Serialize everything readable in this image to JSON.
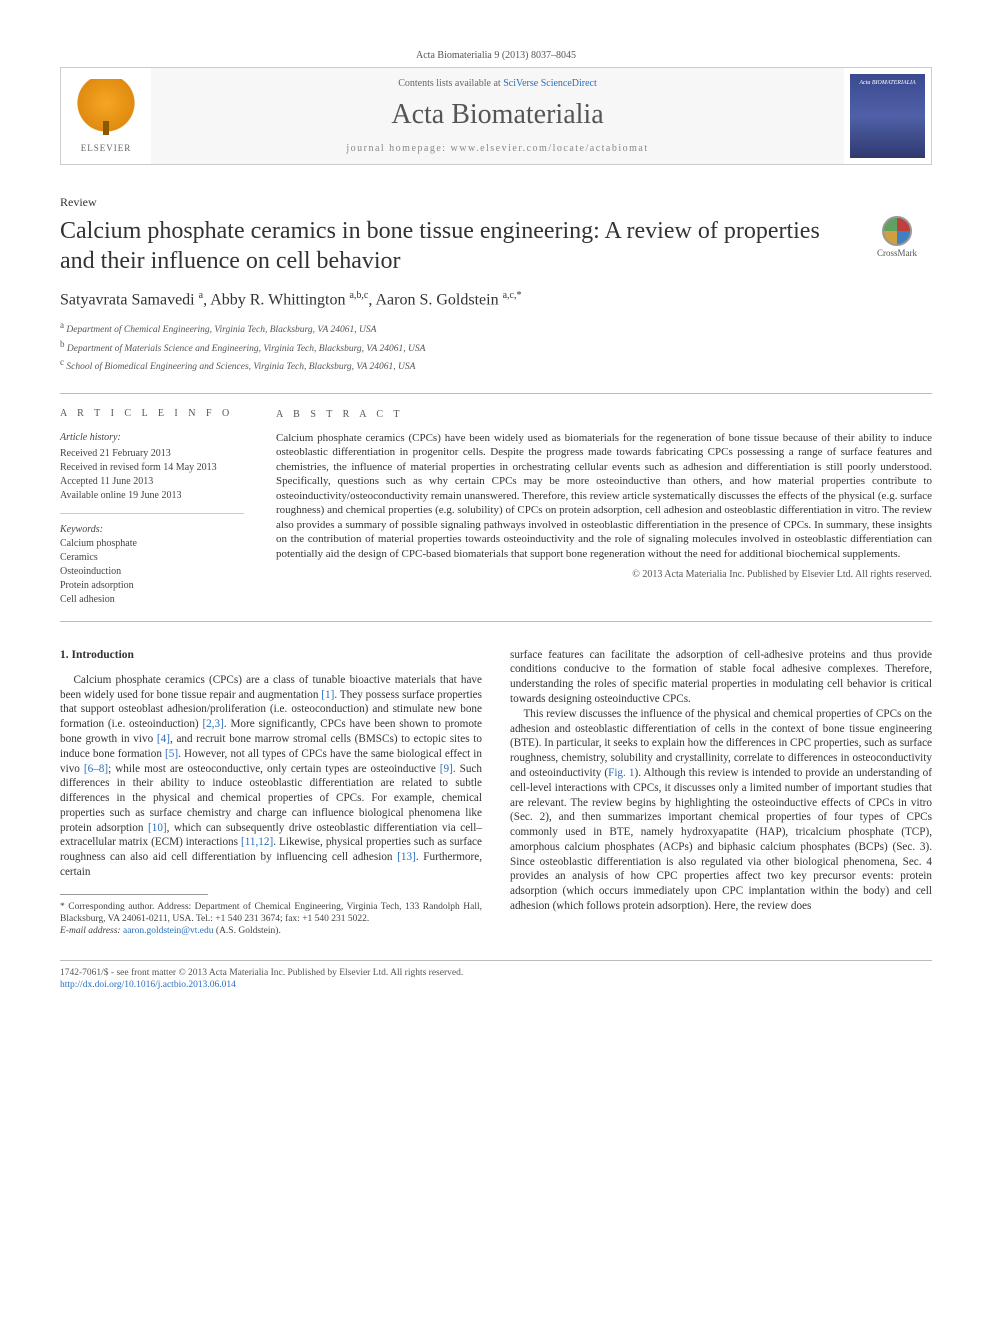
{
  "citation": "Acta Biomaterialia 9 (2013) 8037–8045",
  "header": {
    "contents_prefix": "Contents lists available at ",
    "contents_link": "SciVerse ScienceDirect",
    "journal": "Acta Biomaterialia",
    "homepage_label": "journal homepage: www.elsevier.com/locate/actabiomat",
    "publisher": "ELSEVIER",
    "cover_title": "Acta BIOMATERIALIA"
  },
  "article": {
    "type": "Review",
    "title": "Calcium phosphate ceramics in bone tissue engineering: A review of properties and their influence on cell behavior",
    "crossmark_label": "CrossMark",
    "authors_html": "Satyavrata Samavedi <sup>a</sup>, Abby R. Whittington <sup>a,b,c</sup>, Aaron S. Goldstein <sup>a,c,*</sup>",
    "affiliations": [
      "a Department of Chemical Engineering, Virginia Tech, Blacksburg, VA 24061, USA",
      "b Department of Materials Science and Engineering, Virginia Tech, Blacksburg, VA 24061, USA",
      "c School of Biomedical Engineering and Sciences, Virginia Tech, Blacksburg, VA 24061, USA"
    ]
  },
  "info": {
    "heading": "A R T I C L E   I N F O",
    "history_label": "Article history:",
    "history": [
      "Received 21 February 2013",
      "Received in revised form 14 May 2013",
      "Accepted 11 June 2013",
      "Available online 19 June 2013"
    ],
    "keywords_label": "Keywords:",
    "keywords": [
      "Calcium phosphate",
      "Ceramics",
      "Osteoinduction",
      "Protein adsorption",
      "Cell adhesion"
    ]
  },
  "abstract": {
    "heading": "A B S T R A C T",
    "text": "Calcium phosphate ceramics (CPCs) have been widely used as biomaterials for the regeneration of bone tissue because of their ability to induce osteoblastic differentiation in progenitor cells. Despite the progress made towards fabricating CPCs possessing a range of surface features and chemistries, the influence of material properties in orchestrating cellular events such as adhesion and differentiation is still poorly understood. Specifically, questions such as why certain CPCs may be more osteoinductive than others, and how material properties contribute to osteoinductivity/osteoconductivity remain unanswered. Therefore, this review article systematically discusses the effects of the physical (e.g. surface roughness) and chemical properties (e.g. solubility) of CPCs on protein adsorption, cell adhesion and osteoblastic differentiation in vitro. The review also provides a summary of possible signaling pathways involved in osteoblastic differentiation in the presence of CPCs. In summary, these insights on the contribution of material properties towards osteoinductivity and the role of signaling molecules involved in osteoblastic differentiation can potentially aid the design of CPC-based biomaterials that support bone regeneration without the need for additional biochemical supplements.",
    "copyright": "© 2013 Acta Materialia Inc. Published by Elsevier Ltd. All rights reserved."
  },
  "body": {
    "section_heading": "1. Introduction",
    "p1a": "Calcium phosphate ceramics (CPCs) are a class of tunable bioactive materials that have been widely used for bone tissue repair and augmentation ",
    "p1_r1": "[1]",
    "p1b": ". They possess surface properties that support osteoblast adhesion/proliferation (i.e. osteoconduction) and stimulate new bone formation (i.e. osteoinduction) ",
    "p1_r2": "[2,3]",
    "p1c": ". More significantly, CPCs have been shown to promote bone growth in vivo ",
    "p1_r3": "[4]",
    "p1d": ", and recruit bone marrow stromal cells (BMSCs) to ectopic sites to induce bone formation ",
    "p1_r4": "[5]",
    "p1e": ". However, not all types of CPCs have the same biological effect in vivo ",
    "p1_r5": "[6–8]",
    "p1f": "; while most are osteoconductive, only certain types are osteoinductive ",
    "p1_r6": "[9]",
    "p1g": ". Such differences in their ability to induce osteoblastic differentiation are related to subtle differences in the physical and chemical properties of CPCs. For example, chemical properties such as surface chemistry and charge can influence biological phenomena like protein adsorption ",
    "p1_r7": "[10]",
    "p1h": ", which can subsequently drive osteoblastic differentiation via cell–extracellular matrix (ECM) interactions ",
    "p1_r8": "[11,12]",
    "p1i": ". Likewise, physical properties such as surface roughness can also aid cell differentiation by influencing cell adhesion ",
    "p1_r9": "[13]",
    "p1j": ". Furthermore, certain ",
    "p2": "surface features can facilitate the adsorption of cell-adhesive proteins and thus provide conditions conducive to the formation of stable focal adhesive complexes. Therefore, understanding the roles of specific material properties in modulating cell behavior is critical towards designing osteoinductive CPCs.",
    "p3a": "This review discusses the influence of the physical and chemical properties of CPCs on the adhesion and osteoblastic differentiation of cells in the context of bone tissue engineering (BTE). In particular, it seeks to explain how the differences in CPC properties, such as surface roughness, chemistry, solubility and crystallinity, correlate to differences in osteoconductivity and osteoinductivity (",
    "p3_fig": "Fig. 1",
    "p3b": "). Although this review is intended to provide an understanding of cell-level interactions with CPCs, it discusses only a limited number of important studies that are relevant. The review begins by highlighting the osteoinductive effects of CPCs in vitro (Sec. 2), and then summarizes important chemical properties of four types of CPCs commonly used in BTE, namely hydroxyapatite (HAP), tricalcium phosphate (TCP), amorphous calcium phosphates (ACPs) and biphasic calcium phosphates (BCPs) (Sec. 3). Since osteoblastic differentiation is also regulated via other biological phenomena, Sec. 4 provides an analysis of how CPC properties affect two key precursor events: protein adsorption (which occurs immediately upon CPC implantation within the body) and cell adhesion (which follows protein adsorption). Here, the review does"
  },
  "footnote": {
    "corr": "* Corresponding author. Address: Department of Chemical Engineering, Virginia Tech, 133 Randolph Hall, Blacksburg, VA 24061-0211, USA. Tel.: +1 540 231 3674; fax: +1 540 231 5022.",
    "email_label": "E-mail address: ",
    "email": "aaron.goldstein@vt.edu",
    "email_suffix": " (A.S. Goldstein)."
  },
  "footer": {
    "line1": "1742-7061/$ - see front matter © 2013 Acta Materialia Inc. Published by Elsevier Ltd. All rights reserved.",
    "doi": "http://dx.doi.org/10.1016/j.actbio.2013.06.014"
  },
  "colors": {
    "link": "#2a6ebb",
    "text": "#333333",
    "rule": "#bbbbbb",
    "elsevier_orange": "#e08b10",
    "cover_blue": "#3b4a8f"
  }
}
